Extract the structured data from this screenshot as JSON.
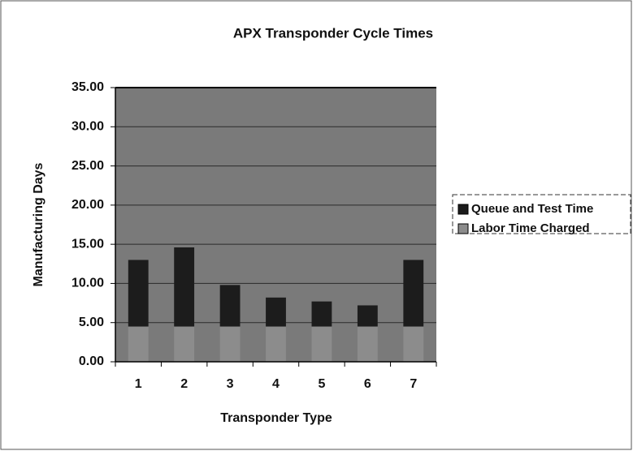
{
  "chart_data": {
    "type": "stacked_bar",
    "title": "APX Transponder Cycle Times",
    "x_label": "Transponder Type",
    "y_label": "Manufacturing Days",
    "categories": [
      "1",
      "2",
      "3",
      "4",
      "5",
      "6",
      "7"
    ],
    "series": [
      {
        "name": "Labor Time Charged",
        "color": "#8c8c8c",
        "values": [
          4.5,
          4.5,
          4.5,
          4.5,
          4.5,
          4.5,
          4.5
        ]
      },
      {
        "name": "Queue and Test Time",
        "color": "#1c1c1c",
        "values": [
          8.5,
          10.1,
          5.3,
          3.7,
          3.2,
          2.7,
          8.5
        ]
      }
    ],
    "ylim": [
      0,
      35
    ],
    "yticks": [
      {
        "value": 0,
        "label": "0.00"
      },
      {
        "value": 5,
        "label": "5.00"
      },
      {
        "value": 10,
        "label": "10.00"
      },
      {
        "value": 15,
        "label": "15.00"
      },
      {
        "value": 20,
        "label": "20.00"
      },
      {
        "value": 25,
        "label": "25.00"
      },
      {
        "value": 30,
        "label": "30.00"
      },
      {
        "value": 35,
        "label": "35.00"
      }
    ],
    "grid": true
  }
}
